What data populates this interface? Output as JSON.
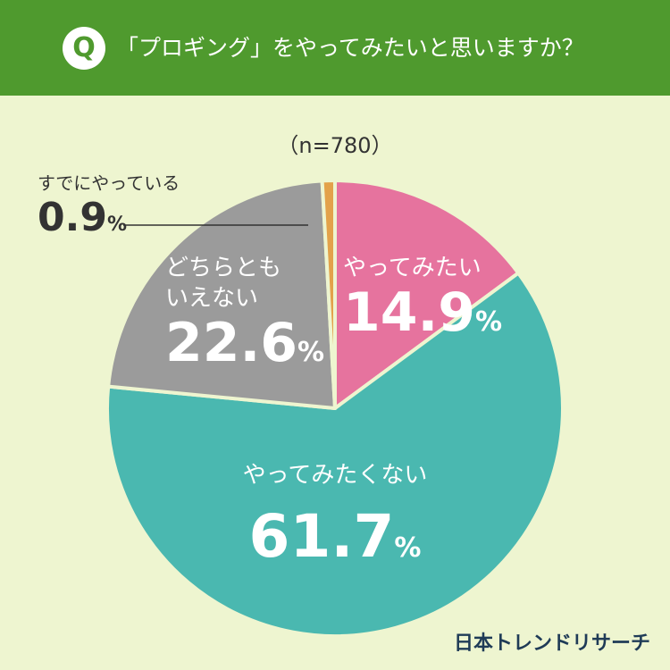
{
  "header": {
    "badge": "Q",
    "question": "「プロギング」をやってみたいと思いますか？"
  },
  "sample_size": "（n=780）",
  "brand": "日本トレンドリサーチ",
  "colors": {
    "header_bg": "#4f9a2e",
    "page_bg": "#eef5d0",
    "want_to_try": "#e6739e",
    "do_not_want": "#4ab8b0",
    "neither": "#9b9b9b",
    "already_doing": "#e3a24a"
  },
  "chart_data": {
    "type": "pie",
    "slices": [
      {
        "label": "やってみたい",
        "value": 14.9,
        "color": "#e6739e",
        "value_text": "14.9"
      },
      {
        "label": "やってみたくない",
        "value": 61.7,
        "color": "#4ab8b0",
        "value_text": "61.7"
      },
      {
        "label": "どちらとも いえない",
        "value": 22.6,
        "color": "#9b9b9b",
        "value_text": "22.6"
      },
      {
        "label": "すでにやっている",
        "value": 0.9,
        "color": "#e3a24a",
        "value_text": "0.9"
      }
    ],
    "unit": "%"
  }
}
